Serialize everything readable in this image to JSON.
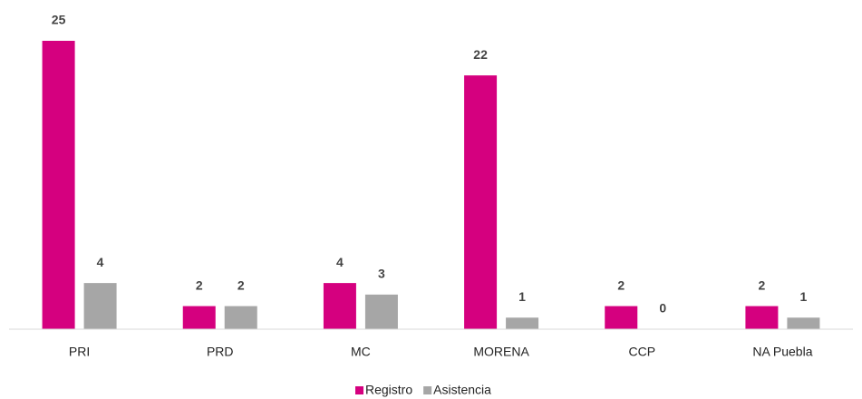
{
  "chart_data": {
    "type": "bar",
    "categories": [
      "PRI",
      "PRD",
      "MC",
      "MORENA",
      "CCP",
      "NA Puebla"
    ],
    "series": [
      {
        "name": "Registro",
        "color": "#d5007f",
        "values": [
          25,
          2,
          4,
          22,
          2,
          2
        ]
      },
      {
        "name": "Asistencia",
        "color": "#a6a6a6",
        "values": [
          4,
          2,
          3,
          1,
          0,
          1
        ]
      }
    ],
    "ylim": [
      0,
      25
    ]
  }
}
